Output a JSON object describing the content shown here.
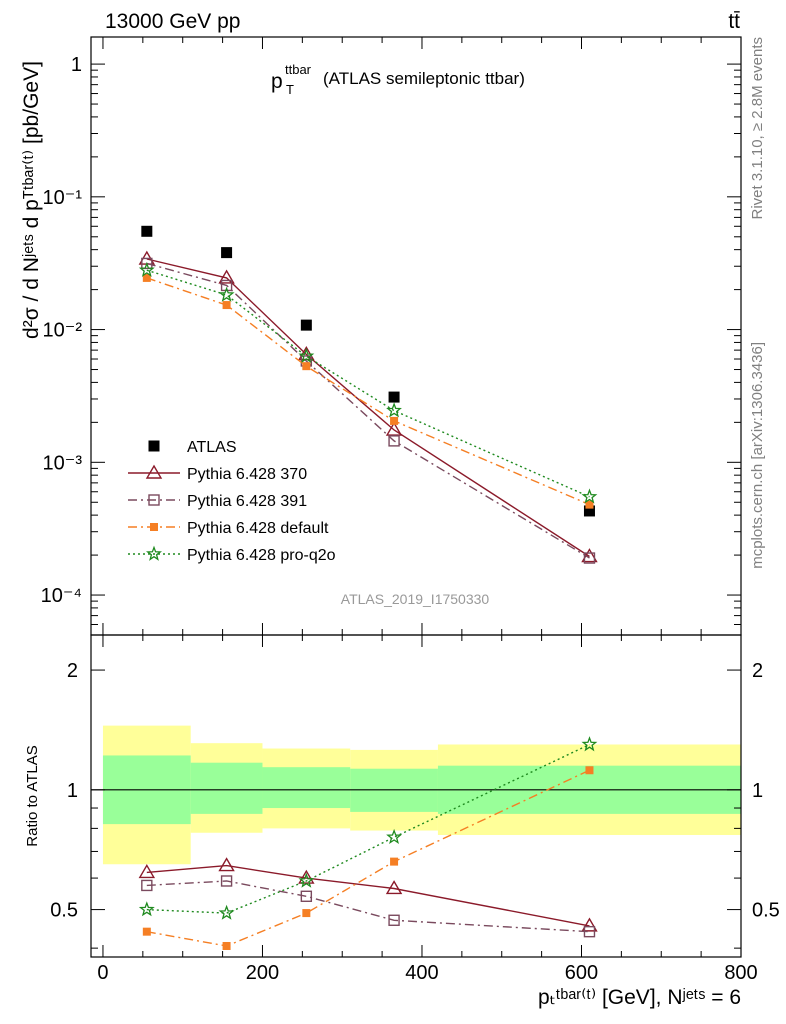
{
  "header": {
    "beam": "13000 GeV pp",
    "process": "tt̄",
    "plot_title_main": "p",
    "plot_title_sup": "ttbar",
    "plot_title_sub": "T",
    "plot_title_rest": "(ATLAS semileptonic ttbar)",
    "analysis_id": "ATLAS_2019_I1750330",
    "side_rivet": "Rivet 3.1.10, ≥ 2.8M events",
    "side_site": "mcplots.cern.ch [arXiv:1306.3436]"
  },
  "axes": {
    "ylabel_top": "d²σ / d Nʲᵉᵗˢ d pᵀᵗᵇᵃʳ⁽ᵗ⁾ [pb/GeV]",
    "ylabel_bottom": "Ratio to ATLAS",
    "xlabel": "pₜᵗᵇᵃʳ⁽ᵗ⁾ [GeV], Nʲᵉᵗˢ = 6",
    "x_ticks": [
      "0",
      "200",
      "400",
      "600",
      "800"
    ],
    "y_top_ticks": [
      "1",
      "10⁻¹",
      "10⁻²",
      "10⁻³",
      "10⁻⁴"
    ],
    "y_ratio_ticks": [
      "2",
      "1",
      "0.5"
    ]
  },
  "chart_data": {
    "type": "line",
    "x_range": [
      -15,
      800
    ],
    "top_panel": {
      "y_scale": "log",
      "y_range": [
        5e-05,
        1.6
      ],
      "x": [
        55,
        155,
        255,
        365,
        610
      ],
      "bin_edges": [
        0,
        110,
        200,
        310,
        420,
        800
      ],
      "legend_position": "bottom-left",
      "series": [
        {
          "name": "ATLAS",
          "values": [
            0.055,
            0.038,
            0.0108,
            0.0031,
            0.00043
          ],
          "color": "#000000",
          "marker": "filled-square",
          "line": "none"
        },
        {
          "name": "Pythia 6.428 370",
          "values": [
            0.034,
            0.0245,
            0.0065,
            0.00175,
            0.000195
          ],
          "color": "#8b1a2a",
          "marker": "open-triangle",
          "line": "solid"
        },
        {
          "name": "Pythia 6.428 391",
          "values": [
            0.0315,
            0.0215,
            0.0058,
            0.00145,
            0.00019
          ],
          "color": "#7a4a5e",
          "marker": "open-square",
          "line": "dashdot"
        },
        {
          "name": "Pythia 6.428 default",
          "values": [
            0.0245,
            0.0153,
            0.0053,
            0.00205,
            0.00048
          ],
          "color": "#f57f24",
          "marker": "filled-square-small",
          "line": "dashdot"
        },
        {
          "name": "Pythia 6.428 pro-q2o",
          "values": [
            0.028,
            0.0182,
            0.0063,
            0.00245,
            0.00055
          ],
          "color": "#1f8a1f",
          "marker": "star",
          "line": "dotted"
        }
      ]
    },
    "ratio_panel": {
      "y_scale": "log",
      "y_range": [
        0.38,
        2.45
      ],
      "band_inner": [
        [
          0.82,
          1.22
        ],
        [
          0.87,
          1.17
        ],
        [
          0.9,
          1.14
        ],
        [
          0.88,
          1.13
        ],
        [
          0.87,
          1.15
        ]
      ],
      "band_outer": [
        [
          0.65,
          1.45
        ],
        [
          0.78,
          1.31
        ],
        [
          0.8,
          1.27
        ],
        [
          0.79,
          1.26
        ],
        [
          0.77,
          1.3
        ]
      ],
      "series": [
        {
          "name": "Pythia 6.428 370",
          "values": [
            0.62,
            0.645,
            0.6,
            0.565,
            0.455
          ]
        },
        {
          "name": "Pythia 6.428 391",
          "values": [
            0.575,
            0.59,
            0.54,
            0.47,
            0.44
          ]
        },
        {
          "name": "Pythia 6.428 default",
          "values": [
            0.44,
            0.405,
            0.49,
            0.66,
            1.12
          ]
        },
        {
          "name": "Pythia 6.428 pro-q2o",
          "values": [
            0.5,
            0.49,
            0.59,
            0.76,
            1.3
          ]
        }
      ]
    },
    "band_colors": {
      "inner": "#99ff99",
      "outer": "#ffff99"
    }
  }
}
